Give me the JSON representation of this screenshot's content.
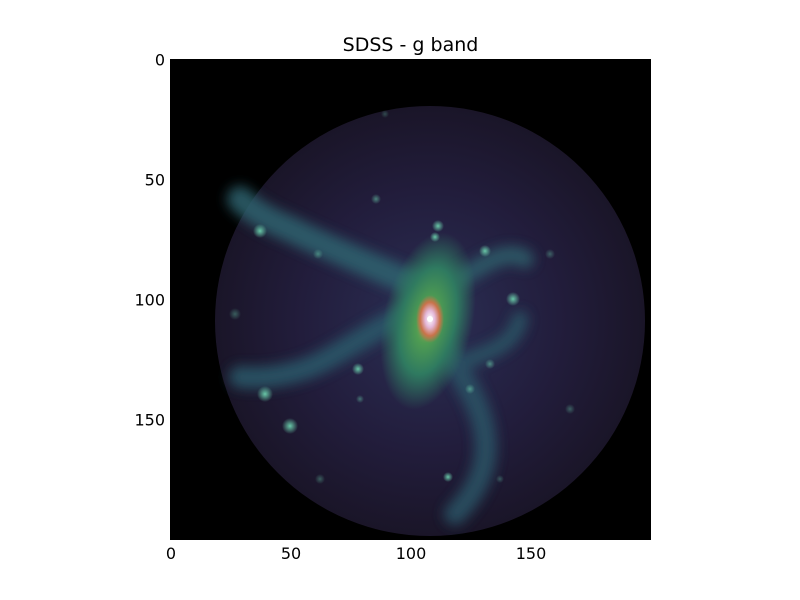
{
  "figure": {
    "title": "SDSS - g band",
    "x_ticks": [
      "0",
      "50",
      "100",
      "150"
    ],
    "y_ticks": [
      "0",
      "50",
      "100",
      "150"
    ],
    "x_tick_values": [
      0,
      50,
      100,
      150
    ],
    "y_tick_values": [
      0,
      50,
      100,
      150
    ],
    "image_extent": [
      0,
      200
    ],
    "colormap": "cubehelix",
    "colors": {
      "background": "#000000",
      "disk": "#241f3a",
      "arm": "#2c5a66",
      "bulge": "#3b8a5a",
      "core": "#e9d7e6"
    }
  }
}
